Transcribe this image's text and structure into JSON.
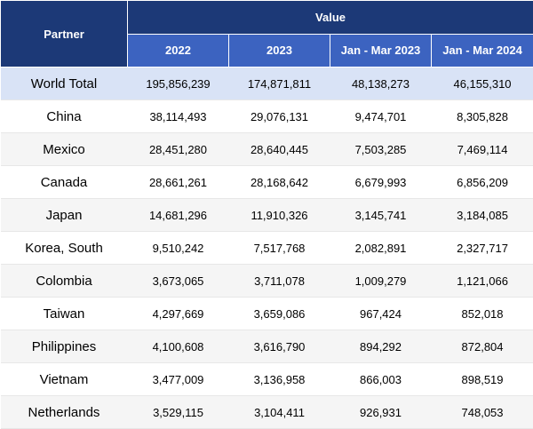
{
  "header": {
    "partner": "Partner",
    "value": "Value",
    "columns": [
      "2022",
      "2023",
      "Jan - Mar 2023",
      "Jan - Mar 2024"
    ]
  },
  "rows": [
    {
      "partner": "World Total",
      "values": [
        "195,856,239",
        "174,871,811",
        "48,138,273",
        "46,155,310"
      ]
    },
    {
      "partner": "China",
      "values": [
        "38,114,493",
        "29,076,131",
        "9,474,701",
        "8,305,828"
      ]
    },
    {
      "partner": "Mexico",
      "values": [
        "28,451,280",
        "28,640,445",
        "7,503,285",
        "7,469,114"
      ]
    },
    {
      "partner": "Canada",
      "values": [
        "28,661,261",
        "28,168,642",
        "6,679,993",
        "6,856,209"
      ]
    },
    {
      "partner": "Japan",
      "values": [
        "14,681,296",
        "11,910,326",
        "3,145,741",
        "3,184,085"
      ]
    },
    {
      "partner": "Korea, South",
      "values": [
        "9,510,242",
        "7,517,768",
        "2,082,891",
        "2,327,717"
      ]
    },
    {
      "partner": "Colombia",
      "values": [
        "3,673,065",
        "3,711,078",
        "1,009,279",
        "1,121,066"
      ]
    },
    {
      "partner": "Taiwan",
      "values": [
        "4,297,669",
        "3,659,086",
        "967,424",
        "852,018"
      ]
    },
    {
      "partner": "Philippines",
      "values": [
        "4,100,608",
        "3,616,790",
        "894,292",
        "872,804"
      ]
    },
    {
      "partner": "Vietnam",
      "values": [
        "3,477,009",
        "3,136,958",
        "866,003",
        "898,519"
      ]
    },
    {
      "partner": "Netherlands",
      "values": [
        "3,529,115",
        "3,104,411",
        "926,931",
        "748,053"
      ]
    }
  ]
}
